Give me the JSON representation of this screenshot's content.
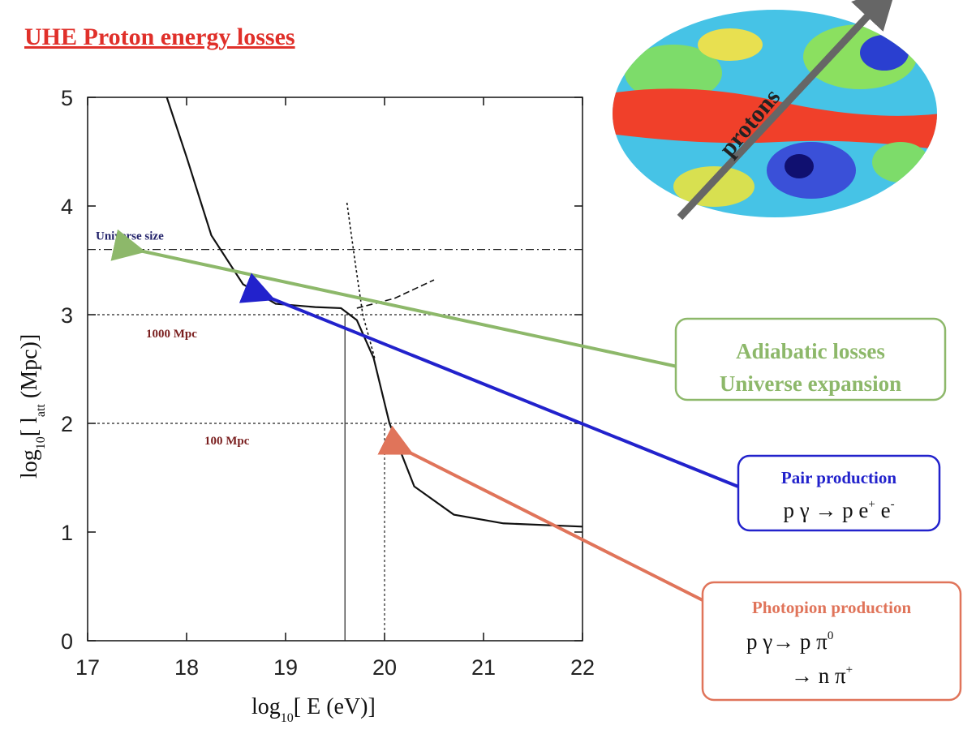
{
  "chart_data": {
    "type": "line",
    "title": "UHE Proton energy losses",
    "xlabel": [
      "log",
      "10",
      "[ E (eV)]"
    ],
    "ylabel": [
      "log",
      "10",
      "[ l",
      "att",
      " (Mpc)]"
    ],
    "xlim": [
      17,
      22
    ],
    "ylim": [
      0,
      5
    ],
    "xticks": [
      17,
      18,
      19,
      20,
      21,
      22
    ],
    "yticks": [
      0,
      1,
      2,
      3,
      4,
      5
    ],
    "series": [
      {
        "x": [
          17.8,
          18.0,
          18.25,
          18.57,
          18.9,
          19.3,
          19.56,
          19.72,
          19.89,
          20.05,
          20.3,
          20.7,
          21.2,
          22
        ],
        "values": [
          5.0,
          4.45,
          3.73,
          3.28,
          3.1,
          3.07,
          3.06,
          2.95,
          2.6,
          2.0,
          1.42,
          1.16,
          1.08,
          1.05
        ],
        "color": "#111111",
        "dash": "none"
      },
      {
        "x": [
          19.72,
          20.1,
          20.5
        ],
        "values": [
          3.06,
          3.15,
          3.32
        ],
        "color": "#111111",
        "dash": "8 4"
      },
      {
        "x": [
          19.62,
          19.7,
          19.78,
          19.9
        ],
        "values": [
          4.03,
          3.5,
          3.0,
          2.6
        ],
        "color": "#111111",
        "dash": "3 3"
      }
    ],
    "hlines": [
      {
        "value": 3.6,
        "label": "Universe  size",
        "color": "#22226a"
      },
      {
        "value": 3,
        "label": "1000 Mpc",
        "color": "#7a1f1f"
      },
      {
        "value": 2,
        "label": "100 Mpc",
        "color": "#7a1f1f"
      }
    ],
    "vlines": [
      {
        "x": 19.6,
        "y": 3
      },
      {
        "x": 20,
        "y": 2
      }
    ]
  },
  "sky_map": {
    "arrow_label": "protons"
  },
  "annotations": {
    "adiabatic": {
      "lines": [
        "Adiabatic losses",
        "Universe expansion"
      ],
      "color": "#8db86a"
    },
    "pair": {
      "title": "Pair production",
      "formula": [
        "p γ →  p e",
        "+",
        " e",
        "-"
      ],
      "color": "#2222cc"
    },
    "photopion": {
      "title": "Photopion production",
      "formula1": [
        "p γ→  p π",
        "0"
      ],
      "formula2": [
        "→  n π",
        "+"
      ],
      "color": "#e0745a"
    }
  }
}
